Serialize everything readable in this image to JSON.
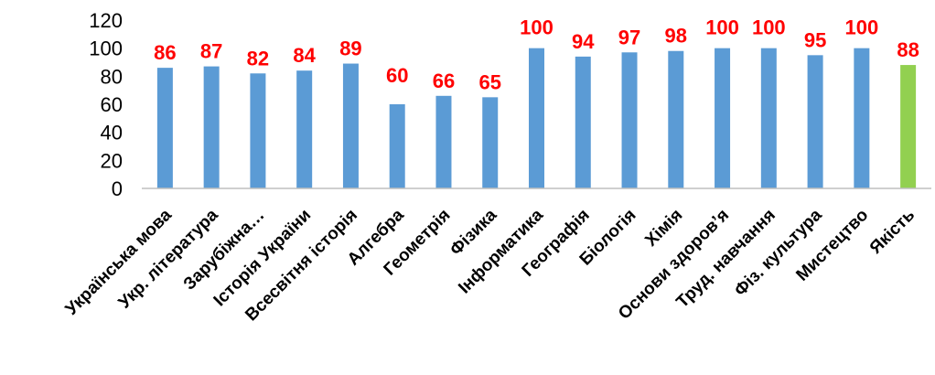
{
  "chart_data": {
    "type": "bar",
    "categories": [
      "Українська  мова",
      "Укр. література",
      "Зарубіжна…",
      "Історія України",
      "Всесвітня історія",
      "Алгебра",
      "Геометрія",
      "Фізика",
      "Інформатика",
      "Географія",
      "Біологія",
      "Хімія",
      "Основи здоров’я",
      "Труд. навчання",
      "Фіз. культура",
      "Мистецтво",
      "Якість"
    ],
    "values": [
      86,
      87,
      82,
      84,
      89,
      60,
      66,
      65,
      100,
      94,
      97,
      98,
      100,
      100,
      95,
      100,
      88
    ],
    "data_labels": [
      "86",
      "87",
      "82",
      "84",
      "89",
      "60",
      "66",
      "65",
      "100",
      "94",
      "97",
      "98",
      "100",
      "100",
      "95",
      "100",
      "88"
    ],
    "ylim": [
      0,
      120
    ],
    "yticks": [
      "0",
      "20",
      "40",
      "60",
      "80",
      "100",
      "120"
    ],
    "title": "",
    "xlabel": "",
    "ylabel": "",
    "grid": false,
    "legend": "none",
    "colors": {
      "bar": "#5b9bd5",
      "highlight_bar": "#92d050",
      "data_label": "#ff0000",
      "axis": "#bfbfbf",
      "text": "#000000"
    },
    "highlight_index": 16
  }
}
